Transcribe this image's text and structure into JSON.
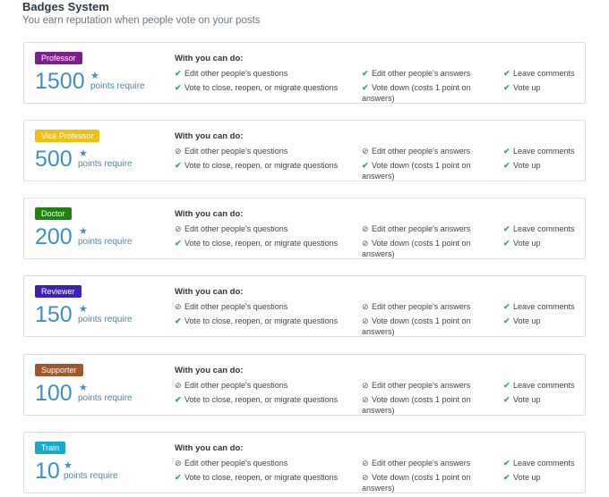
{
  "header": {
    "title": "Badges System",
    "subtitle": "You earn reputation when people vote on your posts"
  },
  "labels": {
    "points_require": "points require",
    "with_you_can_do": "With you can do:",
    "edit_questions": "Edit other people's questions",
    "vote_close": "Vote to close, reopen, or migrate questions",
    "edit_answers": "Edit other people's answers",
    "vote_down": "Vote down (costs 1 point on answers)",
    "leave_comments": "Leave comments",
    "vote_up": "Vote up"
  },
  "icons": {
    "allowed": "check-icon",
    "denied": "block-icon",
    "star": "star-icon"
  },
  "colors": {
    "professor": "#7c1f8a",
    "vice_professor": "#f2c00c",
    "doctor": "#21820f",
    "reviewer": "#3f20b5",
    "supporter": "#a0572a",
    "train": "#1aa8cb",
    "points": "#3e8fc4",
    "allowed": "#3aa36a"
  },
  "badges": [
    {
      "name": "Professor",
      "points": "1500",
      "edit_questions": "allowed",
      "vote_close": "allowed",
      "edit_answers": "allowed",
      "vote_down": "allowed",
      "leave_comments": "allowed",
      "vote_up": "allowed"
    },
    {
      "name": "Vice Professor",
      "points": "500",
      "edit_questions": "denied",
      "vote_close": "allowed",
      "edit_answers": "denied",
      "vote_down": "allowed",
      "leave_comments": "allowed",
      "vote_up": "allowed"
    },
    {
      "name": "Doctor",
      "points": "200",
      "edit_questions": "denied",
      "vote_close": "allowed",
      "edit_answers": "denied",
      "vote_down": "denied",
      "leave_comments": "allowed",
      "vote_up": "allowed"
    },
    {
      "name": "Reviewer",
      "points": "150",
      "edit_questions": "denied",
      "vote_close": "allowed",
      "edit_answers": "denied",
      "vote_down": "denied",
      "leave_comments": "allowed",
      "vote_up": "allowed"
    },
    {
      "name": "Supporter",
      "points": "100",
      "edit_questions": "denied",
      "vote_close": "allowed",
      "edit_answers": "denied",
      "vote_down": "denied",
      "leave_comments": "allowed",
      "vote_up": "allowed"
    },
    {
      "name": "Train",
      "points": "10",
      "edit_questions": "denied",
      "vote_close": "allowed",
      "edit_answers": "denied",
      "vote_down": "denied",
      "leave_comments": "allowed",
      "vote_up": "allowed"
    }
  ]
}
